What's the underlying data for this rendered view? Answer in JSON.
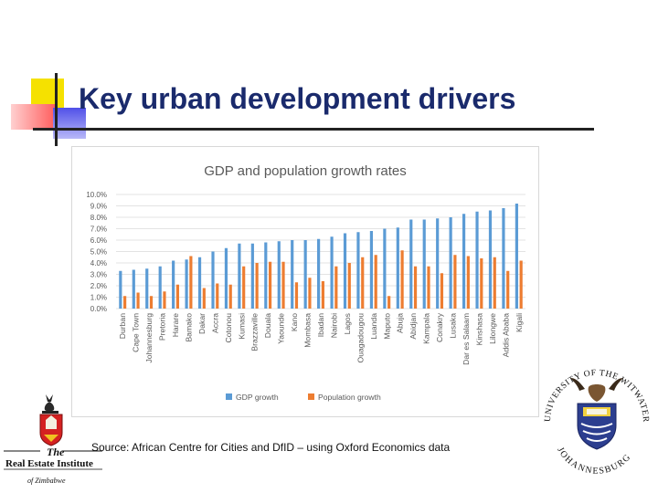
{
  "slide": {
    "title": "Key urban development drivers",
    "source": "Source: African Centre for Cities and DfID – using Oxford Economics data"
  },
  "logos": {
    "left": {
      "the": "The",
      "line1": "Real Estate Institute",
      "line2": "of Zimbabwe"
    },
    "right": {
      "top_arc": "UNIVERSITY OF THE WITWATERSRAND",
      "bottom_arc": "JOHANNESBURG"
    }
  },
  "colors": {
    "title": "#1a2a6c",
    "gdp": "#5b9bd5",
    "population": "#ed7d31",
    "gridline": "#e3e3e3",
    "axis_text": "#595959"
  },
  "chart_data": {
    "type": "bar",
    "title": "GDP and population growth rates",
    "xlabel": "",
    "ylabel": "",
    "ylim": [
      0,
      10
    ],
    "yticks": [
      "0.0%",
      "1.0%",
      "2.0%",
      "3.0%",
      "4.0%",
      "5.0%",
      "6.0%",
      "7.0%",
      "8.0%",
      "9.0%",
      "10.0%"
    ],
    "grid": true,
    "legend": "bottom",
    "categories": [
      "Durban",
      "Cape Town",
      "Johannesburg",
      "Pretoria",
      "Harare",
      "Bamako",
      "Dakar",
      "Accra",
      "Cotonou",
      "Kumasi",
      "Brazzaville",
      "Douala",
      "Yaounde",
      "Kano",
      "Mombasa",
      "Ibadan",
      "Nairobi",
      "Lagos",
      "Ouagadougou",
      "Luanda",
      "Maputo",
      "Abuja",
      "Abidjan",
      "Kampala",
      "Conakry",
      "Lusaka",
      "Dar es Salaam",
      "Kinshasa",
      "Lilongwe",
      "Addis Ababa",
      "Kigali"
    ],
    "series": [
      {
        "name": "GDP growth",
        "values": [
          3.3,
          3.4,
          3.5,
          3.7,
          4.2,
          4.3,
          4.5,
          5.0,
          5.3,
          5.7,
          5.7,
          5.8,
          5.9,
          6.0,
          6.0,
          6.1,
          6.3,
          6.6,
          6.7,
          6.8,
          7.0,
          7.1,
          7.8,
          7.8,
          7.9,
          8.0,
          8.3,
          8.5,
          8.6,
          8.8,
          9.2
        ]
      },
      {
        "name": "Population growth",
        "values": [
          1.1,
          1.4,
          1.1,
          1.5,
          2.1,
          4.6,
          1.8,
          2.2,
          2.1,
          3.7,
          4.0,
          4.1,
          4.1,
          2.3,
          2.7,
          2.4,
          3.7,
          4.0,
          4.5,
          4.7,
          1.1,
          5.1,
          3.7,
          3.7,
          3.1,
          4.7,
          4.6,
          4.4,
          4.5,
          3.3,
          4.2
        ]
      }
    ]
  }
}
